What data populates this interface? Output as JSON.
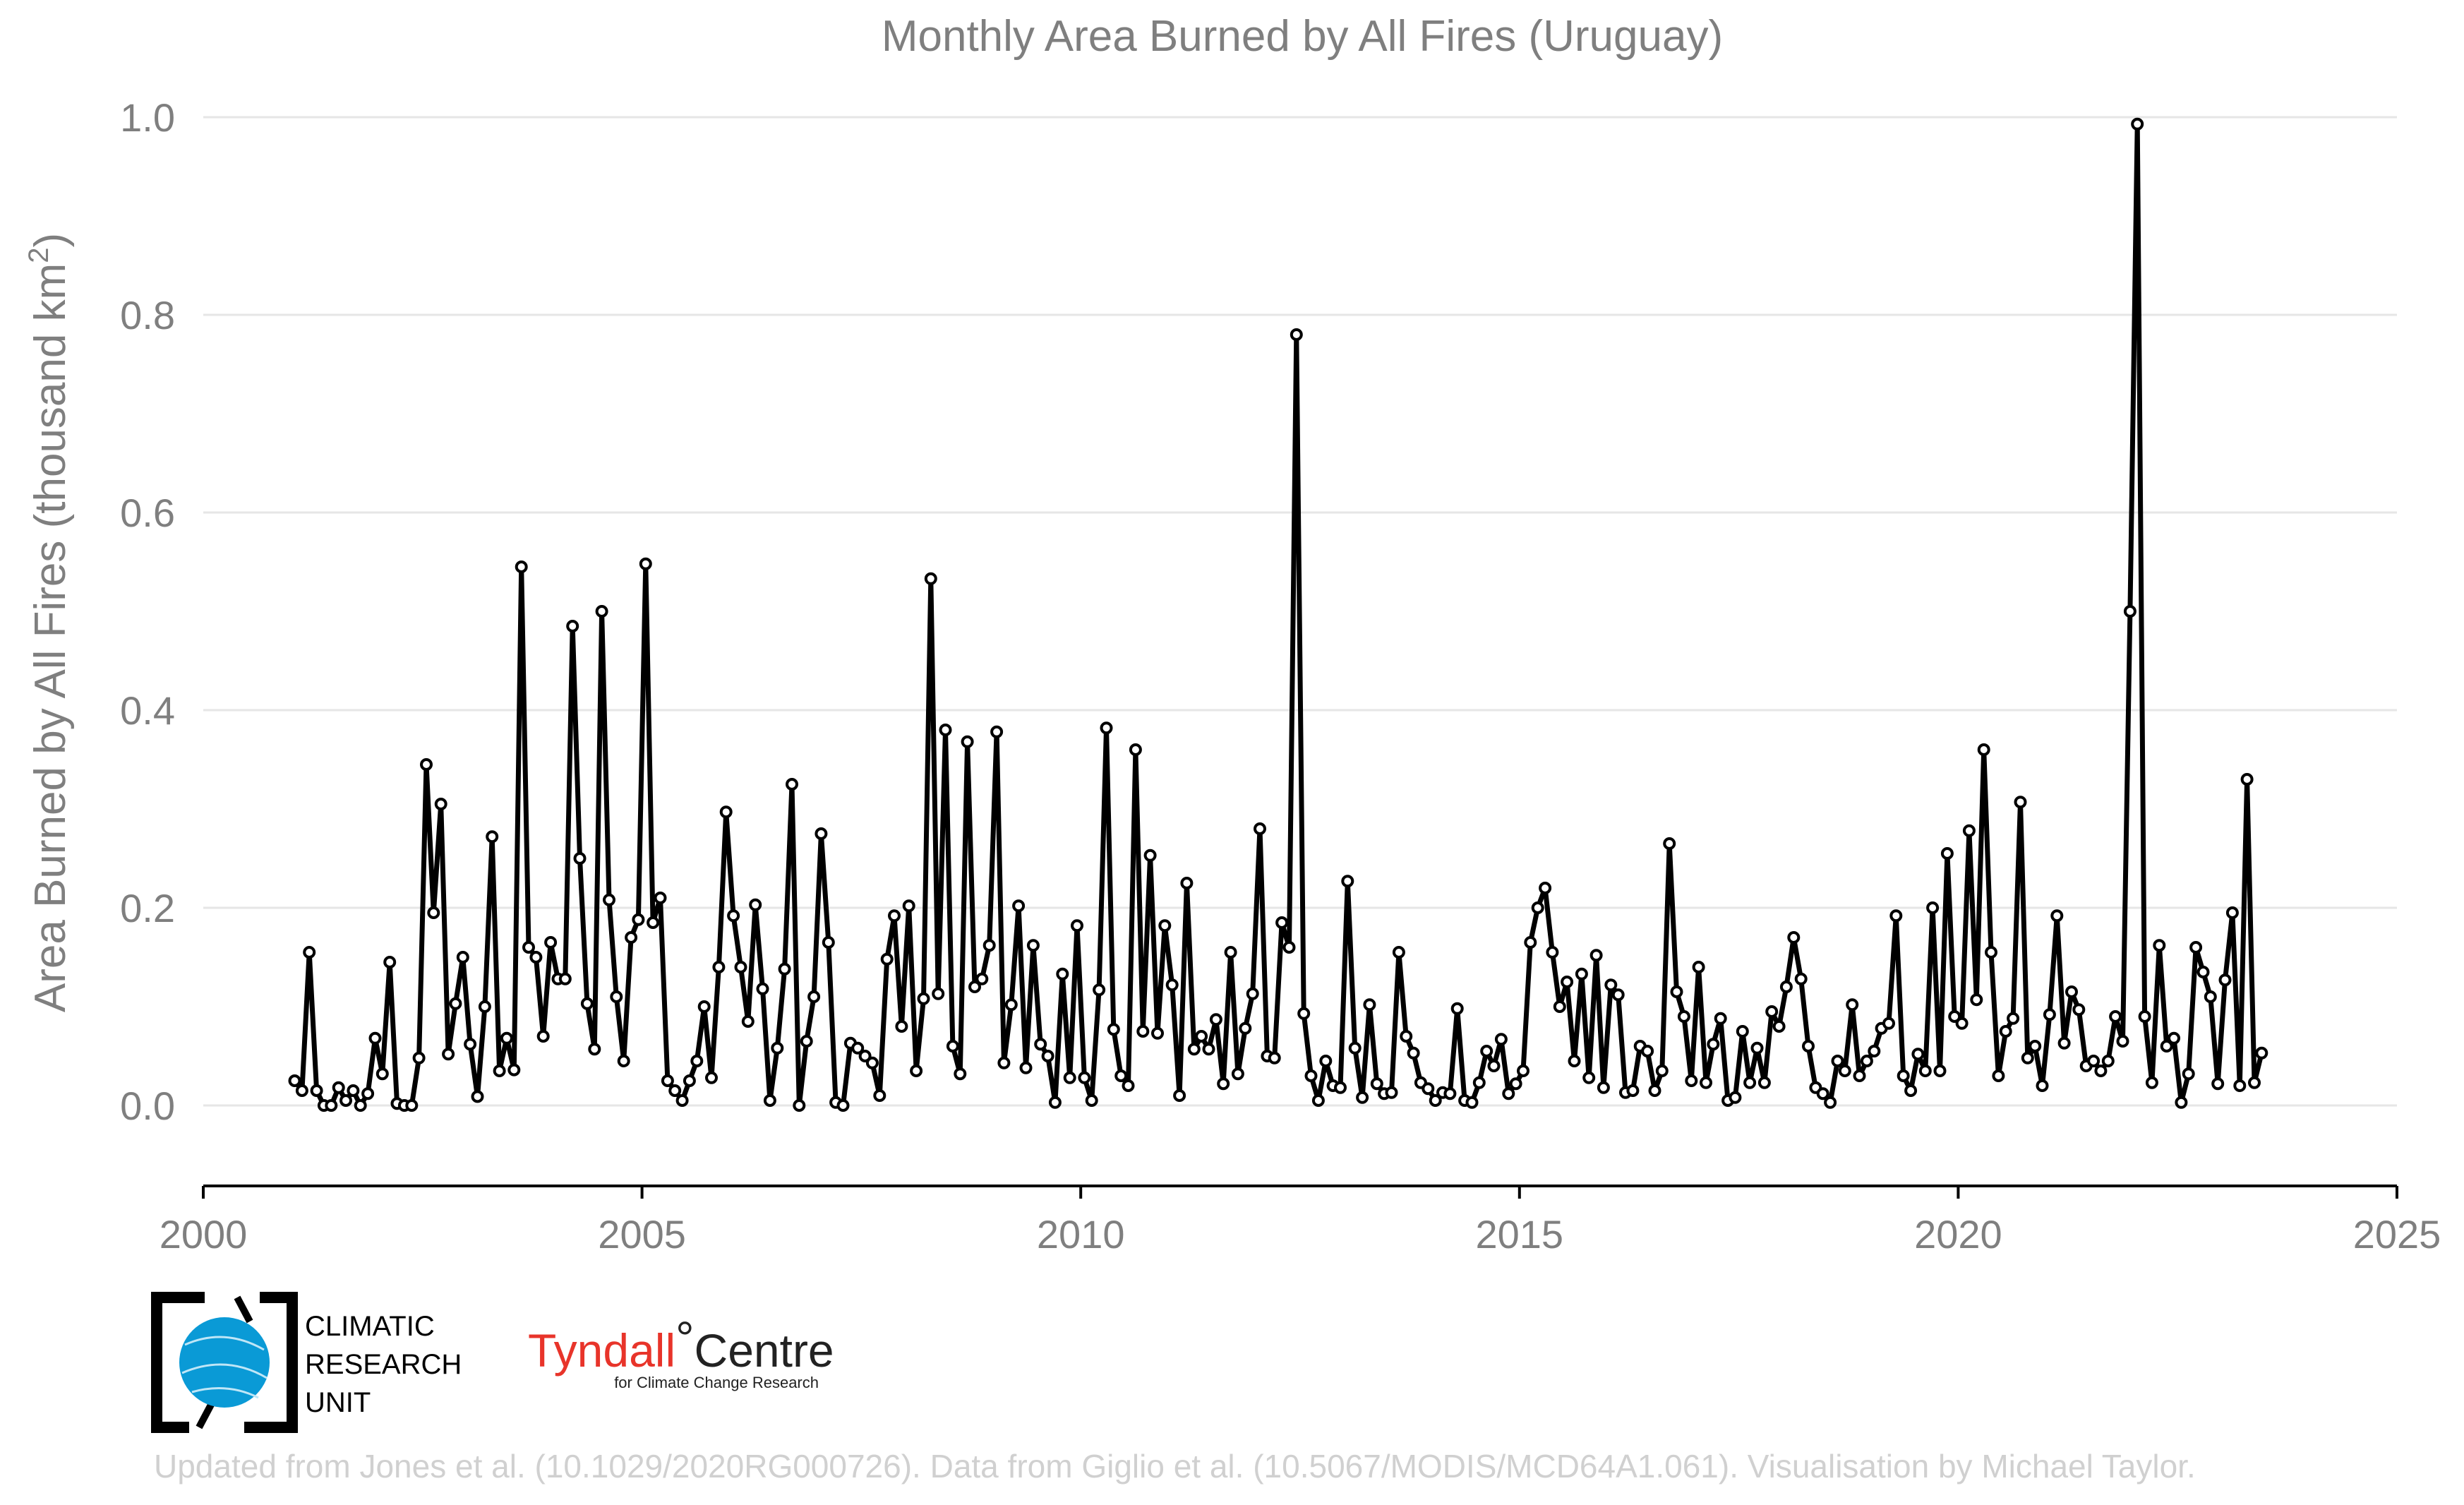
{
  "chart_data": {
    "type": "line",
    "title": "Monthly Area Burned by All Fires (Uruguay)",
    "ylabel_main": "Area Burned by All Fires (thousand km",
    "ylabel_sup": "2",
    "ylabel_end": ")",
    "xlim": [
      2000,
      2025
    ],
    "ylim": [
      -0.08,
      1.0
    ],
    "x_ticks": [
      2000,
      2005,
      2010,
      2015,
      2020,
      2025
    ],
    "y_ticks": [
      0.0,
      0.2,
      0.4,
      0.6,
      0.8,
      1.0
    ],
    "y_tick_labels": [
      "0.0",
      "0.2",
      "0.4",
      "0.6",
      "0.8",
      "1.0"
    ],
    "grid": true,
    "start_year": 2001,
    "start_month": 1,
    "series_color": "#000000",
    "series": [
      {
        "values": [
          0.025,
          0.015,
          0.155,
          0.015,
          0.0,
          0.0,
          0.018,
          0.005,
          0.015,
          0.0,
          0.012,
          0.068,
          0.032,
          0.145,
          0.002,
          0.0,
          0.0,
          0.048,
          0.345,
          0.195,
          0.305,
          0.052,
          0.103,
          0.15,
          0.062,
          0.009,
          0.1,
          0.272,
          0.035,
          0.068,
          0.036,
          0.545,
          0.16,
          0.15,
          0.07,
          0.165,
          0.128,
          0.128,
          0.485,
          0.25,
          0.103,
          0.057,
          0.5,
          0.208,
          0.11,
          0.045,
          0.17,
          0.188,
          0.548,
          0.185,
          0.21,
          0.025,
          0.015,
          0.005,
          0.025,
          0.045,
          0.1,
          0.028,
          0.14,
          0.297,
          0.192,
          0.14,
          0.085,
          0.203,
          0.118,
          0.005,
          0.058,
          0.138,
          0.325,
          0.0,
          0.065,
          0.11,
          0.275,
          0.165,
          0.003,
          0.0,
          0.063,
          0.058,
          0.05,
          0.043,
          0.01,
          0.148,
          0.192,
          0.08,
          0.202,
          0.035,
          0.108,
          0.533,
          0.113,
          0.38,
          0.06,
          0.032,
          0.368,
          0.12,
          0.128,
          0.162,
          0.378,
          0.043,
          0.102,
          0.202,
          0.038,
          0.162,
          0.062,
          0.05,
          0.003,
          0.133,
          0.028,
          0.182,
          0.028,
          0.005,
          0.117,
          0.382,
          0.077,
          0.03,
          0.02,
          0.36,
          0.075,
          0.253,
          0.073,
          0.182,
          0.122,
          0.01,
          0.225,
          0.057,
          0.07,
          0.057,
          0.087,
          0.022,
          0.155,
          0.032,
          0.078,
          0.113,
          0.28,
          0.05,
          0.048,
          0.185,
          0.16,
          0.78,
          0.093,
          0.03,
          0.005,
          0.045,
          0.02,
          0.018,
          0.227,
          0.058,
          0.008,
          0.102,
          0.022,
          0.012,
          0.013,
          0.155,
          0.07,
          0.053,
          0.023,
          0.017,
          0.005,
          0.013,
          0.012,
          0.098,
          0.005,
          0.003,
          0.023,
          0.055,
          0.04,
          0.067,
          0.012,
          0.022,
          0.035,
          0.165,
          0.2,
          0.22,
          0.155,
          0.1,
          0.125,
          0.045,
          0.133,
          0.028,
          0.152,
          0.018,
          0.122,
          0.112,
          0.013,
          0.015,
          0.06,
          0.055,
          0.015,
          0.035,
          0.265,
          0.115,
          0.09,
          0.025,
          0.14,
          0.023,
          0.062,
          0.088,
          0.005,
          0.008,
          0.075,
          0.023,
          0.058,
          0.023,
          0.095,
          0.08,
          0.12,
          0.17,
          0.128,
          0.06,
          0.018,
          0.012,
          0.003,
          0.045,
          0.035,
          0.102,
          0.03,
          0.045,
          0.055,
          0.078,
          0.083,
          0.192,
          0.03,
          0.015,
          0.052,
          0.035,
          0.2,
          0.035,
          0.255,
          0.09,
          0.083,
          0.278,
          0.107,
          0.36,
          0.155,
          0.03,
          0.075,
          0.088,
          0.307,
          0.048,
          0.06,
          0.02,
          0.092,
          0.192,
          0.063,
          0.115,
          0.097,
          0.04,
          0.045,
          0.035,
          0.045,
          0.09,
          0.065,
          0.5,
          0.993,
          0.09,
          0.023,
          0.162,
          0.06,
          0.068,
          0.003,
          0.032,
          0.16,
          0.135,
          0.11,
          0.022,
          0.127,
          0.195,
          0.02,
          0.33,
          0.023,
          0.053
        ]
      }
    ]
  },
  "logos": {
    "cru": [
      "CLIMATIC",
      "RESEARCH",
      "UNIT"
    ],
    "tyndall_name": "Tyndall",
    "tyndall_degree": "°",
    "tyndall_centre": "Centre",
    "tyndall_sub": "for Climate Change Research"
  },
  "footer": "Updated from Jones et al. (10.1029/2020RG000726). Data from Giglio et al. (10.5067/MODIS/MCD64A1.061). Visualisation by Michael Taylor."
}
